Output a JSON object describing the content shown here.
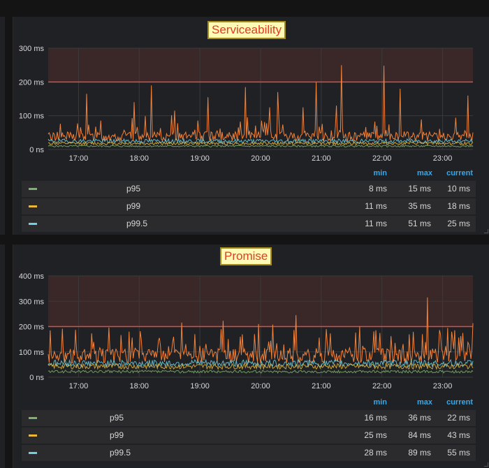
{
  "colors": {
    "p95": "#7eb26d",
    "p99": "#eab839",
    "p99_5": "#6ed0e0",
    "spikes": "#f2823a",
    "threshold": "#e24d42",
    "legend_header": "#39a7e5"
  },
  "panels": [
    {
      "title": "Serviceability",
      "legend": {
        "headers": [
          "min",
          "max",
          "current"
        ],
        "rows": [
          {
            "name": "p95",
            "min": "8 ms",
            "max": "15 ms",
            "current": "10 ms"
          },
          {
            "name": "p99",
            "min": "11 ms",
            "max": "35 ms",
            "current": "18 ms"
          },
          {
            "name": "p99.5",
            "min": "11 ms",
            "max": "51 ms",
            "current": "25 ms"
          }
        ]
      }
    },
    {
      "title": "Promise",
      "legend": {
        "headers": [
          "min",
          "max",
          "current"
        ],
        "rows": [
          {
            "name": "p95",
            "min": "16 ms",
            "max": "36 ms",
            "current": "22 ms"
          },
          {
            "name": "p99",
            "min": "25 ms",
            "max": "84 ms",
            "current": "43 ms"
          },
          {
            "name": "p99.5",
            "min": "28 ms",
            "max": "89 ms",
            "current": "55 ms"
          }
        ]
      }
    }
  ],
  "chart_data": [
    {
      "type": "line",
      "title": "Serviceability",
      "y_ticks": [
        "0 ns",
        "100 ms",
        "200 ms",
        "300 ms"
      ],
      "ylim": [
        0,
        300
      ],
      "x_ticks": [
        "17:00",
        "18:00",
        "19:00",
        "20:00",
        "21:00",
        "22:00",
        "23:00"
      ],
      "xlim": [
        "16:30",
        "23:30"
      ],
      "threshold": 200,
      "grid": true,
      "series": [
        {
          "name": "p95",
          "baseline_ms": 10,
          "color": "#7eb26d"
        },
        {
          "name": "p99",
          "baseline_ms": 18,
          "color": "#eab839"
        },
        {
          "name": "p99.5",
          "baseline_ms": 25,
          "color": "#6ed0e0"
        }
      ],
      "spikes": [
        {
          "x": "17:08",
          "y": 165
        },
        {
          "x": "17:55",
          "y": 140
        },
        {
          "x": "18:12",
          "y": 190
        },
        {
          "x": "18:35",
          "y": 115
        },
        {
          "x": "19:08",
          "y": 155
        },
        {
          "x": "19:45",
          "y": 185
        },
        {
          "x": "20:09",
          "y": 125
        },
        {
          "x": "20:17",
          "y": 170
        },
        {
          "x": "20:42",
          "y": 125
        },
        {
          "x": "20:55",
          "y": 200
        },
        {
          "x": "21:15",
          "y": 130
        },
        {
          "x": "21:20",
          "y": 250
        },
        {
          "x": "22:02",
          "y": 248
        },
        {
          "x": "22:18",
          "y": 180
        },
        {
          "x": "23:25",
          "y": 160
        }
      ]
    },
    {
      "type": "line",
      "title": "Promise",
      "y_ticks": [
        "0 ns",
        "100 ms",
        "200 ms",
        "300 ms",
        "400 ms"
      ],
      "ylim": [
        0,
        400
      ],
      "x_ticks": [
        "17:00",
        "18:00",
        "19:00",
        "20:00",
        "21:00",
        "22:00",
        "23:00"
      ],
      "xlim": [
        "16:30",
        "23:30"
      ],
      "threshold": 200,
      "grid": true,
      "series": [
        {
          "name": "p95",
          "baseline_ms": 22,
          "color": "#7eb26d"
        },
        {
          "name": "p99",
          "baseline_ms": 43,
          "color": "#eab839"
        },
        {
          "name": "p99.5",
          "baseline_ms": 55,
          "color": "#6ed0e0"
        }
      ],
      "spikes": [
        {
          "x": "16:32",
          "y": 185
        },
        {
          "x": "17:50",
          "y": 180
        },
        {
          "x": "18:20",
          "y": 155
        },
        {
          "x": "18:55",
          "y": 170
        },
        {
          "x": "19:40",
          "y": 160
        },
        {
          "x": "19:58",
          "y": 210
        },
        {
          "x": "20:35",
          "y": 245
        },
        {
          "x": "21:05",
          "y": 190
        },
        {
          "x": "21:38",
          "y": 200
        },
        {
          "x": "21:58",
          "y": 175
        },
        {
          "x": "22:40",
          "y": 170
        },
        {
          "x": "22:45",
          "y": 315
        },
        {
          "x": "23:10",
          "y": 150
        },
        {
          "x": "23:20",
          "y": 175
        }
      ]
    }
  ]
}
